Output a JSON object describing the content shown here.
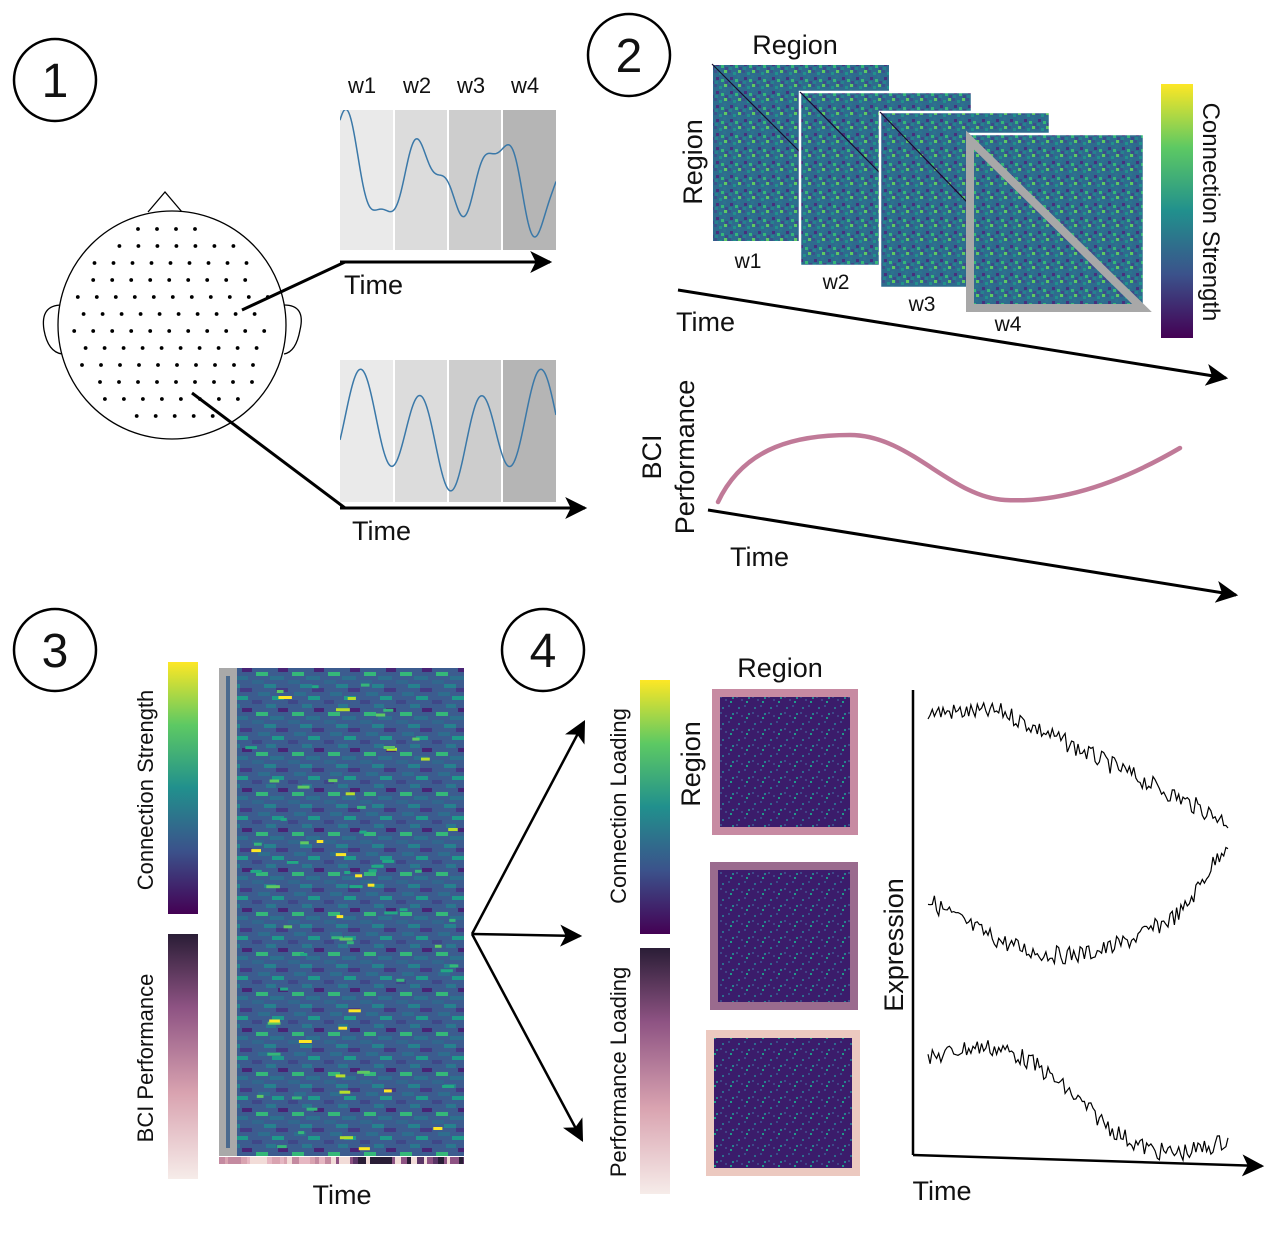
{
  "panels": [
    {
      "number": "1"
    },
    {
      "number": "2"
    },
    {
      "number": "3"
    },
    {
      "number": "4"
    }
  ],
  "panel1": {
    "window_labels": [
      "w1",
      "w2",
      "w3",
      "w4"
    ],
    "time_label_top": "Time",
    "time_label_bottom": "Time"
  },
  "panel2": {
    "region_top": "Region",
    "region_side": "Region",
    "windows": [
      "w1",
      "w2",
      "w3",
      "w4"
    ],
    "time_label": "Time",
    "colorbar_label": "Connection Strength",
    "perf_label_line1": "BCI",
    "perf_label_line2": "Performance",
    "perf_time_label": "Time"
  },
  "panel3": {
    "colorbar_strength_label": "Connection Strength",
    "colorbar_perf_label": "BCI Performance",
    "time_label": "Time"
  },
  "panel4": {
    "region_top": "Region",
    "region_side": "Region",
    "connection_loading_label": "Connection Loading",
    "performance_loading_label": "Performance Loading",
    "expression_label": "Expression",
    "time_label": "Time"
  },
  "colors": {
    "viridis_dark": "#440154",
    "viridis_mid": "#21908d",
    "viridis_light": "#fde725",
    "perf_curve": "#c07a98",
    "frame_pink_1": "#c78aa2",
    "frame_purple": "#9a6b8e",
    "frame_pink_2": "#ecc9c0",
    "signal_blue": "#3a78a8"
  }
}
